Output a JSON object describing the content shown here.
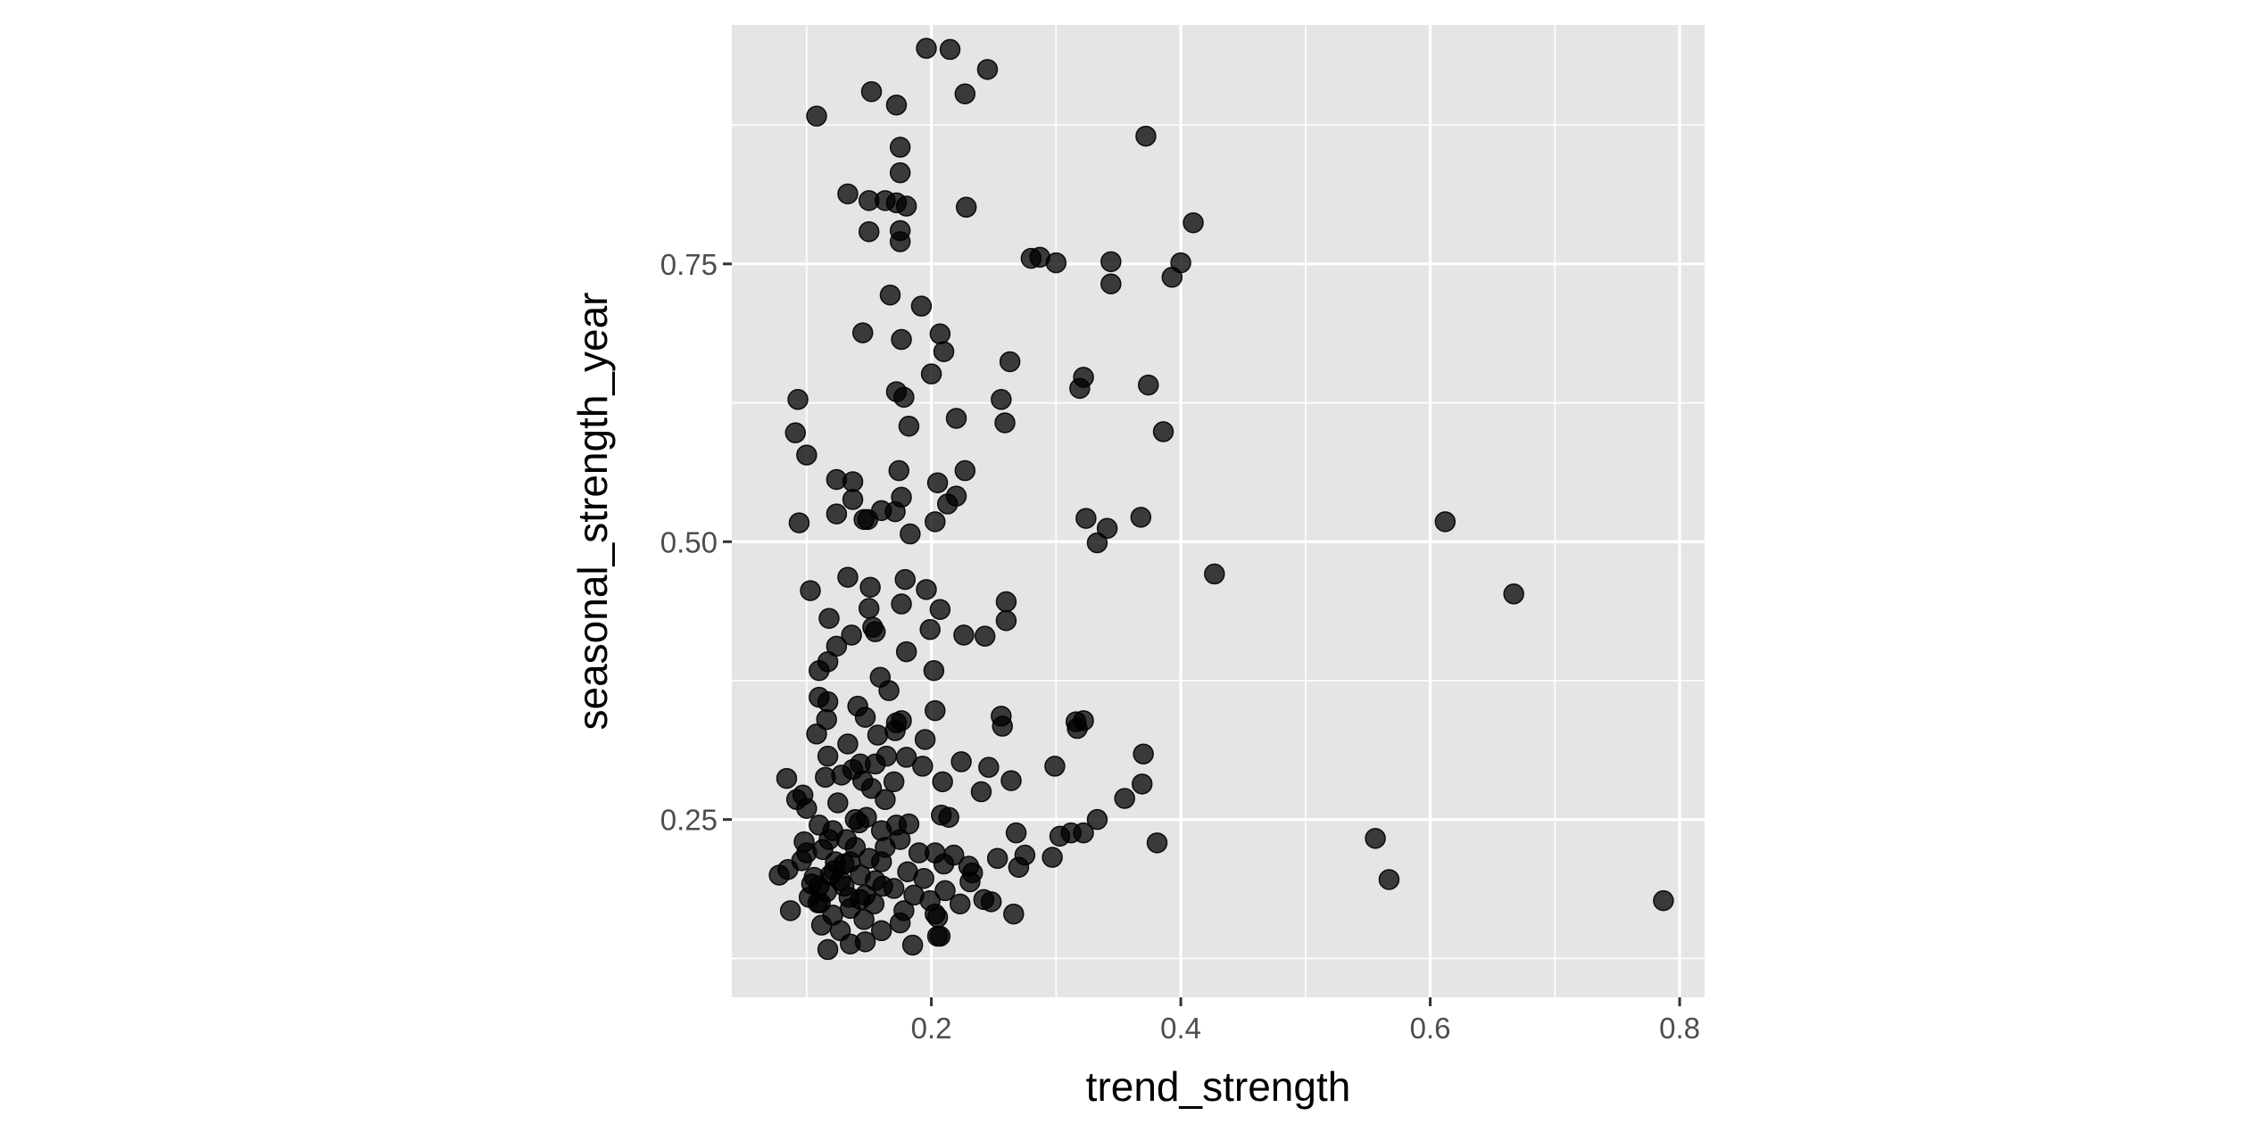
{
  "chart_data": {
    "type": "scatter",
    "xlabel": "trend_strength",
    "ylabel": "seasonal_strength_year",
    "xlim": [
      0.04,
      0.82
    ],
    "ylim": [
      0.09,
      0.965
    ],
    "x_ticks": [
      0.2,
      0.4,
      0.6,
      0.8
    ],
    "x_tick_labels": [
      "0.2",
      "0.4",
      "0.6",
      "0.8"
    ],
    "y_ticks": [
      0.25,
      0.5,
      0.75
    ],
    "y_tick_labels": [
      "0.25",
      "0.50",
      "0.75"
    ],
    "x_minor_ticks": [
      0.1,
      0.3,
      0.5,
      0.7
    ],
    "y_minor_ticks": [
      0.125,
      0.375,
      0.625,
      0.875
    ],
    "grid": true,
    "legend": "none",
    "colors": {
      "panel": "#e5e5e5",
      "grid": "#ffffff",
      "point": "#000000",
      "point_opacity": 0.75
    },
    "series": [
      {
        "points": [
          [
            0.196,
            0.944
          ],
          [
            0.215,
            0.943
          ],
          [
            0.245,
            0.925
          ],
          [
            0.152,
            0.905
          ],
          [
            0.227,
            0.903
          ],
          [
            0.172,
            0.893
          ],
          [
            0.108,
            0.883
          ],
          [
            0.372,
            0.865
          ],
          [
            0.175,
            0.855
          ],
          [
            0.175,
            0.832
          ],
          [
            0.133,
            0.813
          ],
          [
            0.15,
            0.807
          ],
          [
            0.163,
            0.807
          ],
          [
            0.172,
            0.805
          ],
          [
            0.18,
            0.802
          ],
          [
            0.228,
            0.801
          ],
          [
            0.41,
            0.787
          ],
          [
            0.15,
            0.779
          ],
          [
            0.175,
            0.78
          ],
          [
            0.175,
            0.77
          ],
          [
            0.28,
            0.755
          ],
          [
            0.287,
            0.756
          ],
          [
            0.3,
            0.751
          ],
          [
            0.344,
            0.752
          ],
          [
            0.4,
            0.751
          ],
          [
            0.393,
            0.738
          ],
          [
            0.344,
            0.732
          ],
          [
            0.167,
            0.722
          ],
          [
            0.192,
            0.712
          ],
          [
            0.145,
            0.688
          ],
          [
            0.176,
            0.682
          ],
          [
            0.207,
            0.687
          ],
          [
            0.21,
            0.671
          ],
          [
            0.263,
            0.662
          ],
          [
            0.2,
            0.651
          ],
          [
            0.322,
            0.648
          ],
          [
            0.319,
            0.638
          ],
          [
            0.374,
            0.641
          ],
          [
            0.172,
            0.635
          ],
          [
            0.178,
            0.63
          ],
          [
            0.093,
            0.628
          ],
          [
            0.256,
            0.628
          ],
          [
            0.22,
            0.611
          ],
          [
            0.259,
            0.607
          ],
          [
            0.182,
            0.604
          ],
          [
            0.386,
            0.599
          ],
          [
            0.091,
            0.598
          ],
          [
            0.1,
            0.578
          ],
          [
            0.227,
            0.564
          ],
          [
            0.174,
            0.564
          ],
          [
            0.124,
            0.556
          ],
          [
            0.137,
            0.554
          ],
          [
            0.205,
            0.553
          ],
          [
            0.137,
            0.538
          ],
          [
            0.176,
            0.54
          ],
          [
            0.22,
            0.541
          ],
          [
            0.213,
            0.534
          ],
          [
            0.16,
            0.528
          ],
          [
            0.124,
            0.525
          ],
          [
            0.171,
            0.527
          ],
          [
            0.146,
            0.52
          ],
          [
            0.149,
            0.52
          ],
          [
            0.203,
            0.518
          ],
          [
            0.094,
            0.517
          ],
          [
            0.324,
            0.521
          ],
          [
            0.368,
            0.522
          ],
          [
            0.612,
            0.518
          ],
          [
            0.341,
            0.512
          ],
          [
            0.183,
            0.507
          ],
          [
            0.333,
            0.499
          ],
          [
            0.427,
            0.471
          ],
          [
            0.133,
            0.468
          ],
          [
            0.179,
            0.466
          ],
          [
            0.151,
            0.459
          ],
          [
            0.196,
            0.457
          ],
          [
            0.103,
            0.456
          ],
          [
            0.667,
            0.453
          ],
          [
            0.26,
            0.446
          ],
          [
            0.176,
            0.444
          ],
          [
            0.207,
            0.439
          ],
          [
            0.15,
            0.44
          ],
          [
            0.118,
            0.431
          ],
          [
            0.26,
            0.429
          ],
          [
            0.153,
            0.423
          ],
          [
            0.199,
            0.421
          ],
          [
            0.155,
            0.419
          ],
          [
            0.136,
            0.416
          ],
          [
            0.226,
            0.416
          ],
          [
            0.243,
            0.415
          ],
          [
            0.124,
            0.406
          ],
          [
            0.18,
            0.401
          ],
          [
            0.117,
            0.392
          ],
          [
            0.11,
            0.384
          ],
          [
            0.202,
            0.384
          ],
          [
            0.159,
            0.378
          ],
          [
            0.166,
            0.366
          ],
          [
            0.11,
            0.36
          ],
          [
            0.117,
            0.356
          ],
          [
            0.141,
            0.352
          ],
          [
            0.203,
            0.348
          ],
          [
            0.256,
            0.343
          ],
          [
            0.147,
            0.342
          ],
          [
            0.176,
            0.339
          ],
          [
            0.172,
            0.337
          ],
          [
            0.116,
            0.34
          ],
          [
            0.322,
            0.339
          ],
          [
            0.316,
            0.338
          ],
          [
            0.317,
            0.332
          ],
          [
            0.257,
            0.334
          ],
          [
            0.171,
            0.33
          ],
          [
            0.108,
            0.327
          ],
          [
            0.157,
            0.326
          ],
          [
            0.195,
            0.322
          ],
          [
            0.133,
            0.318
          ],
          [
            0.117,
            0.307
          ],
          [
            0.164,
            0.307
          ],
          [
            0.18,
            0.306
          ],
          [
            0.224,
            0.302
          ],
          [
            0.37,
            0.309
          ],
          [
            0.143,
            0.3
          ],
          [
            0.155,
            0.3
          ],
          [
            0.137,
            0.295
          ],
          [
            0.193,
            0.298
          ],
          [
            0.246,
            0.297
          ],
          [
            0.299,
            0.298
          ],
          [
            0.128,
            0.29
          ],
          [
            0.115,
            0.288
          ],
          [
            0.084,
            0.287
          ],
          [
            0.145,
            0.285
          ],
          [
            0.17,
            0.284
          ],
          [
            0.209,
            0.284
          ],
          [
            0.264,
            0.285
          ],
          [
            0.369,
            0.282
          ],
          [
            0.097,
            0.272
          ],
          [
            0.092,
            0.268
          ],
          [
            0.152,
            0.278
          ],
          [
            0.163,
            0.268
          ],
          [
            0.125,
            0.265
          ],
          [
            0.355,
            0.269
          ],
          [
            0.1,
            0.26
          ],
          [
            0.24,
            0.275
          ],
          [
            0.208,
            0.254
          ],
          [
            0.214,
            0.252
          ],
          [
            0.139,
            0.25
          ],
          [
            0.148,
            0.252
          ],
          [
            0.333,
            0.25
          ],
          [
            0.11,
            0.245
          ],
          [
            0.172,
            0.245
          ],
          [
            0.182,
            0.246
          ],
          [
            0.121,
            0.24
          ],
          [
            0.16,
            0.24
          ],
          [
            0.268,
            0.238
          ],
          [
            0.312,
            0.238
          ],
          [
            0.322,
            0.238
          ],
          [
            0.303,
            0.235
          ],
          [
            0.381,
            0.229
          ],
          [
            0.556,
            0.233
          ],
          [
            0.098,
            0.23
          ],
          [
            0.132,
            0.232
          ],
          [
            0.175,
            0.232
          ],
          [
            0.113,
            0.223
          ],
          [
            0.19,
            0.22
          ],
          [
            0.203,
            0.22
          ],
          [
            0.218,
            0.218
          ],
          [
            0.275,
            0.218
          ],
          [
            0.297,
            0.216
          ],
          [
            0.253,
            0.215
          ],
          [
            0.096,
            0.213
          ],
          [
            0.135,
            0.212
          ],
          [
            0.16,
            0.212
          ],
          [
            0.21,
            0.21
          ],
          [
            0.23,
            0.208
          ],
          [
            0.27,
            0.207
          ],
          [
            0.085,
            0.205
          ],
          [
            0.122,
            0.204
          ],
          [
            0.181,
            0.203
          ],
          [
            0.233,
            0.202
          ],
          [
            0.143,
            0.2
          ],
          [
            0.078,
            0.2
          ],
          [
            0.106,
            0.198
          ],
          [
            0.194,
            0.197
          ],
          [
            0.567,
            0.196
          ],
          [
            0.155,
            0.195
          ],
          [
            0.231,
            0.194
          ],
          [
            0.104,
            0.192
          ],
          [
            0.13,
            0.19
          ],
          [
            0.17,
            0.188
          ],
          [
            0.211,
            0.186
          ],
          [
            0.116,
            0.185
          ],
          [
            0.147,
            0.182
          ],
          [
            0.186,
            0.182
          ],
          [
            0.102,
            0.18
          ],
          [
            0.143,
            0.178
          ],
          [
            0.199,
            0.177
          ],
          [
            0.242,
            0.178
          ],
          [
            0.248,
            0.176
          ],
          [
            0.787,
            0.177
          ],
          [
            0.109,
            0.175
          ],
          [
            0.154,
            0.174
          ],
          [
            0.223,
            0.174
          ],
          [
            0.087,
            0.168
          ],
          [
            0.135,
            0.17
          ],
          [
            0.178,
            0.168
          ],
          [
            0.203,
            0.165
          ],
          [
            0.266,
            0.165
          ],
          [
            0.121,
            0.164
          ],
          [
            0.146,
            0.16
          ],
          [
            0.175,
            0.157
          ],
          [
            0.205,
            0.162
          ],
          [
            0.112,
            0.155
          ],
          [
            0.16,
            0.15
          ],
          [
            0.205,
            0.145
          ],
          [
            0.207,
            0.145
          ],
          [
            0.127,
            0.15
          ],
          [
            0.135,
            0.138
          ],
          [
            0.147,
            0.14
          ],
          [
            0.117,
            0.133
          ],
          [
            0.185,
            0.137
          ],
          [
            0.11,
            0.19
          ],
          [
            0.13,
            0.21
          ],
          [
            0.15,
            0.215
          ],
          [
            0.118,
            0.232
          ],
          [
            0.142,
            0.247
          ],
          [
            0.163,
            0.225
          ],
          [
            0.127,
            0.195
          ],
          [
            0.111,
            0.175
          ],
          [
            0.139,
            0.225
          ],
          [
            0.161,
            0.19
          ],
          [
            0.1,
            0.22
          ],
          [
            0.123,
            0.212
          ],
          [
            0.134,
            0.18
          ],
          [
            0.119,
            0.2
          ]
        ]
      }
    ]
  }
}
